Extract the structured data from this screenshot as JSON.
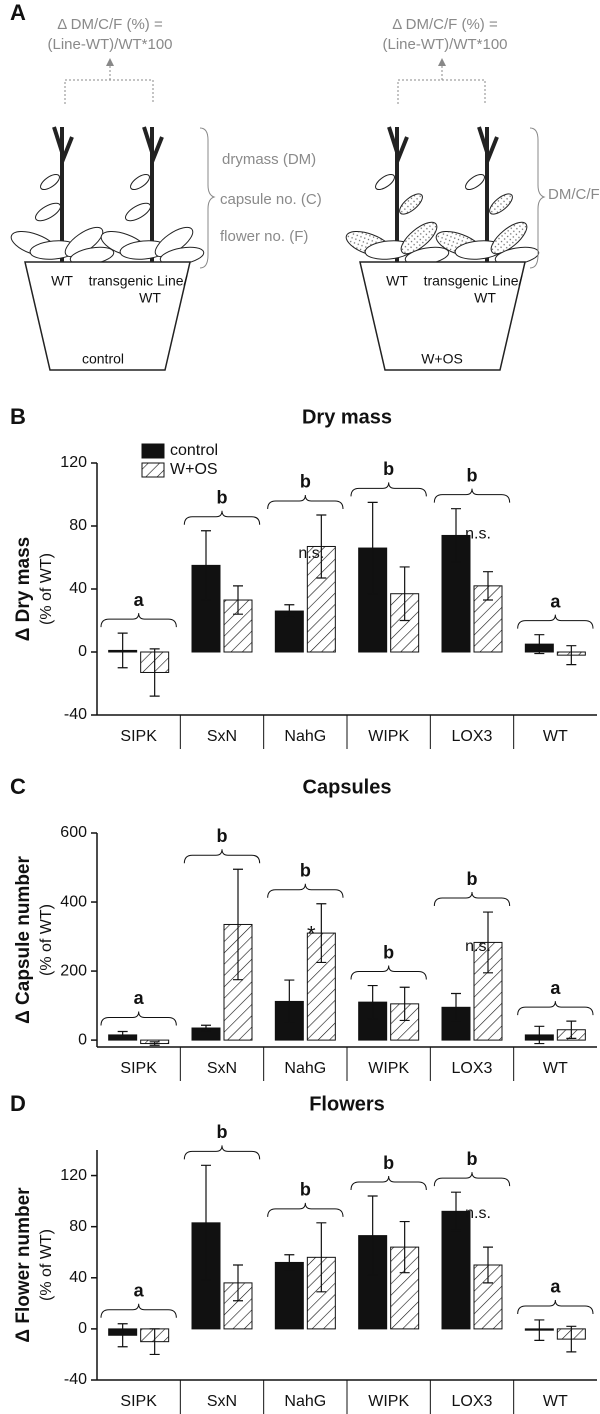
{
  "diagram": {
    "label": "A",
    "control_panel": {
      "formula": [
        "Δ DM/C/F (%) =",
        "(Line-WT)/WT*100"
      ],
      "measures": [
        "drymass (DM)",
        "capsule no. (C)",
        "flower no. (F)"
      ],
      "pot_labels": [
        "WT",
        "transgenic Line/",
        "WT"
      ],
      "treatment": "control"
    },
    "wos_panel": {
      "formula": [
        "Δ DM/C/F (%) =",
        "(Line-WT)/WT*100"
      ],
      "measure": "DM/C/F",
      "pot_labels": [
        "WT",
        "transgenic Line/",
        "WT"
      ],
      "treatment": "W+OS"
    }
  },
  "chart_data": [
    {
      "type": "bar",
      "label": "B",
      "title": "Dry mass",
      "ylabel": [
        "Δ Dry mass",
        "(% of WT)"
      ],
      "categories": [
        "SIPK",
        "SxN",
        "NahG",
        "WIPK",
        "LOX3",
        "WT"
      ],
      "series": [
        {
          "name": "control",
          "color": "#111111",
          "hatch": false,
          "values": [
            1,
            55,
            26,
            66,
            74,
            5
          ],
          "errors": [
            11,
            22,
            4,
            29,
            17,
            6
          ]
        },
        {
          "name": "W+OS",
          "color": "#ffffff",
          "hatch": true,
          "values": [
            -13,
            33,
            67,
            37,
            42,
            -2
          ],
          "errors": [
            15,
            9,
            20,
            17,
            9,
            6
          ]
        }
      ],
      "group_labels": [
        "a",
        "b",
        "b",
        "b",
        "b",
        "a"
      ],
      "annotations": [
        null,
        null,
        "n.s.",
        null,
        "n.s.",
        null
      ],
      "ylim": [
        -40,
        120
      ],
      "yticks": [
        -40,
        0,
        40,
        80,
        120
      ],
      "legend": "upper left"
    },
    {
      "type": "bar",
      "label": "C",
      "title": "Capsules",
      "ylabel": [
        "Δ Capsule number",
        "(% of WT)"
      ],
      "categories": [
        "SIPK",
        "SxN",
        "NahG",
        "WIPK",
        "LOX3",
        "WT"
      ],
      "series": [
        {
          "color": "#111111",
          "hatch": false,
          "values": [
            15,
            35,
            112,
            110,
            95,
            15
          ],
          "errors": [
            10,
            8,
            62,
            48,
            40,
            25
          ]
        },
        {
          "color": "#ffffff",
          "hatch": true,
          "values": [
            -10,
            335,
            310,
            105,
            283,
            30
          ],
          "errors": [
            5,
            160,
            85,
            48,
            88,
            25
          ]
        }
      ],
      "group_labels": [
        "a",
        "b",
        "b",
        "b",
        "b",
        "a"
      ],
      "annotations": [
        null,
        null,
        "*",
        null,
        "n.s.",
        null
      ],
      "ylim": [
        -20,
        600
      ],
      "yticks": [
        0,
        200,
        400,
        600
      ]
    },
    {
      "type": "bar",
      "label": "D",
      "title": "Flowers",
      "ylabel": [
        "Δ Flower number",
        "(% of WT)"
      ],
      "categories": [
        "SIPK",
        "SxN",
        "NahG",
        "WIPK",
        "LOX3",
        "WT"
      ],
      "series": [
        {
          "color": "#111111",
          "hatch": false,
          "values": [
            -5,
            83,
            52,
            73,
            92,
            -1
          ],
          "errors": [
            9,
            45,
            6,
            31,
            15,
            8
          ]
        },
        {
          "color": "#ffffff",
          "hatch": true,
          "values": [
            -10,
            36,
            56,
            64,
            50,
            -8
          ],
          "errors": [
            10,
            14,
            27,
            20,
            14,
            10
          ]
        }
      ],
      "group_labels": [
        "a",
        "b",
        "b",
        "b",
        "b",
        "a"
      ],
      "annotations": [
        null,
        null,
        null,
        null,
        "n.s.",
        null
      ],
      "ylim": [
        -40,
        140
      ],
      "yticks": [
        -40,
        0,
        40,
        80,
        120
      ]
    }
  ]
}
